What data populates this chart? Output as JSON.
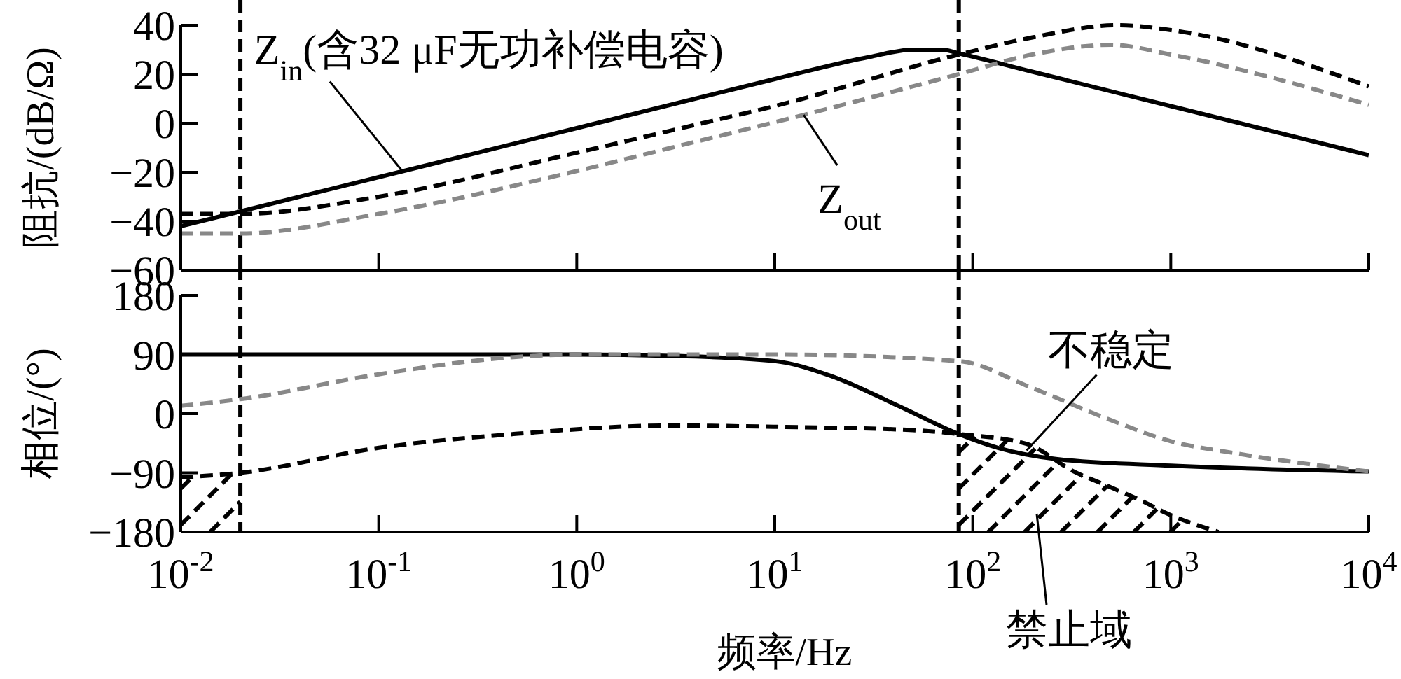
{
  "chart_data": [
    {
      "type": "line",
      "ylabel": "阻抗/(dB/Ω)",
      "log": "x",
      "xlim": [
        0.01,
        10000
      ],
      "ylim": [
        -60,
        40
      ],
      "tick_labels": "y",
      "xticks": [
        {
          "value": 0.01,
          "label": null
        },
        {
          "value": 0.1,
          "label": null
        },
        {
          "value": 1,
          "label": null
        },
        {
          "value": 10,
          "label": null
        },
        {
          "value": 100,
          "label": null
        },
        {
          "value": 1000,
          "label": null
        },
        {
          "value": 10000,
          "label": null
        }
      ],
      "yticks": [
        {
          "value": -60,
          "label": "−60"
        },
        {
          "value": -40,
          "label": "−40"
        },
        {
          "value": -20,
          "label": "−20"
        },
        0,
        20,
        40
      ],
      "series": [
        {
          "color": "#000000",
          "line_style": "solid",
          "x": [
            0.01,
            0.02,
            0.1,
            1,
            10,
            30,
            50,
            70,
            85,
            200,
            1000,
            10000
          ],
          "values": [
            -42,
            -36,
            -22,
            -2,
            18,
            27,
            30,
            30,
            28.5,
            21,
            7,
            -13
          ]
        },
        {
          "color": "#000000",
          "line_style": "dashed",
          "x": [
            0.01,
            0.02,
            0.1,
            1,
            4.3,
            10,
            85,
            200,
            540,
            1000,
            10000
          ],
          "values": [
            -37,
            -37,
            -30,
            -12,
            0,
            7,
            28,
            35,
            40,
            38,
            15
          ]
        },
        {
          "color": "#888888",
          "line_style": "dashed",
          "x": [
            0.01,
            0.02,
            0.1,
            1,
            3,
            14,
            85,
            200,
            500,
            1000,
            10000
          ],
          "values": [
            -45,
            -45,
            -37,
            -19.5,
            -10,
            3.4,
            20,
            28,
            32,
            28,
            7.5
          ]
        }
      ],
      "ref_lines": [
        {
          "axis": "x",
          "value": 0.02,
          "color": "#000000",
          "line_style": "dashed"
        },
        {
          "axis": "x",
          "value": 85,
          "color": "#000000",
          "line_style": "dashed"
        }
      ],
      "annotations": [
        {
          "text": "Z$_{in}$(含32 μF无功补偿电容)",
          "x": 0.13,
          "y": -19
        },
        {
          "text": "Z$_{out}$",
          "x": 14,
          "y": 3.4
        }
      ]
    },
    {
      "type": "line",
      "ylabel": "相位/(°)",
      "xlabel": "频率/Hz",
      "log": "x",
      "xlim": [
        0.01,
        10000
      ],
      "ylim": [
        -180,
        180
      ],
      "xticks": [
        {
          "value": 0.01,
          "label": "10$^{-2}$"
        },
        {
          "value": 0.1,
          "label": "10$^{-1}$"
        },
        {
          "value": 1,
          "label": "10$^{0}$"
        },
        {
          "value": 10,
          "label": "10$^{1}$"
        },
        {
          "value": 100,
          "label": "10$^{2}$"
        },
        {
          "value": 1000,
          "label": "10$^{3}$"
        },
        {
          "value": 10000,
          "label": "10$^{4}$"
        }
      ],
      "yticks": [
        {
          "value": -180,
          "label": "−180"
        },
        {
          "value": -90,
          "label": "−90"
        },
        0,
        90,
        180
      ],
      "series": [
        {
          "color": "#000000",
          "line_style": "solid",
          "x": [
            0.01,
            1,
            3,
            10,
            19,
            42,
            85,
            134,
            263,
            1000,
            10000
          ],
          "values": [
            90,
            90,
            88,
            80,
            58,
            12,
            -31,
            -52,
            -69,
            -79,
            -88
          ]
        },
        {
          "color": "#888888",
          "line_style": "dashed",
          "x": [
            0.01,
            0.02,
            0.1,
            0.48,
            1,
            10,
            85,
            200,
            500,
            1000,
            2000,
            10000
          ],
          "values": [
            12,
            22,
            60,
            86,
            90,
            90,
            80,
            39,
            -10,
            -42,
            -59,
            -88
          ]
        },
        {
          "color": "#000000",
          "line_style": "dashed",
          "x": [
            0.01,
            0.02,
            0.1,
            0.48,
            3,
            10,
            50,
            85,
            187,
            324,
            480,
            695,
            960,
            1740
          ],
          "values": [
            -97,
            -90,
            -52,
            -31,
            -18,
            -20,
            -25,
            -31,
            -46,
            -88,
            -110,
            -131,
            -152,
            -180
          ]
        }
      ],
      "ref_lines": [
        {
          "axis": "x",
          "value": 0.02,
          "color": "#000000",
          "line_style": "dashed"
        },
        {
          "axis": "x",
          "value": 85,
          "color": "#000000",
          "line_style": "dashed"
        }
      ],
      "annotations": [
        {
          "text": "不稳定",
          "x": 187,
          "y": -56
        },
        "禁止域"
      ]
    }
  ]
}
